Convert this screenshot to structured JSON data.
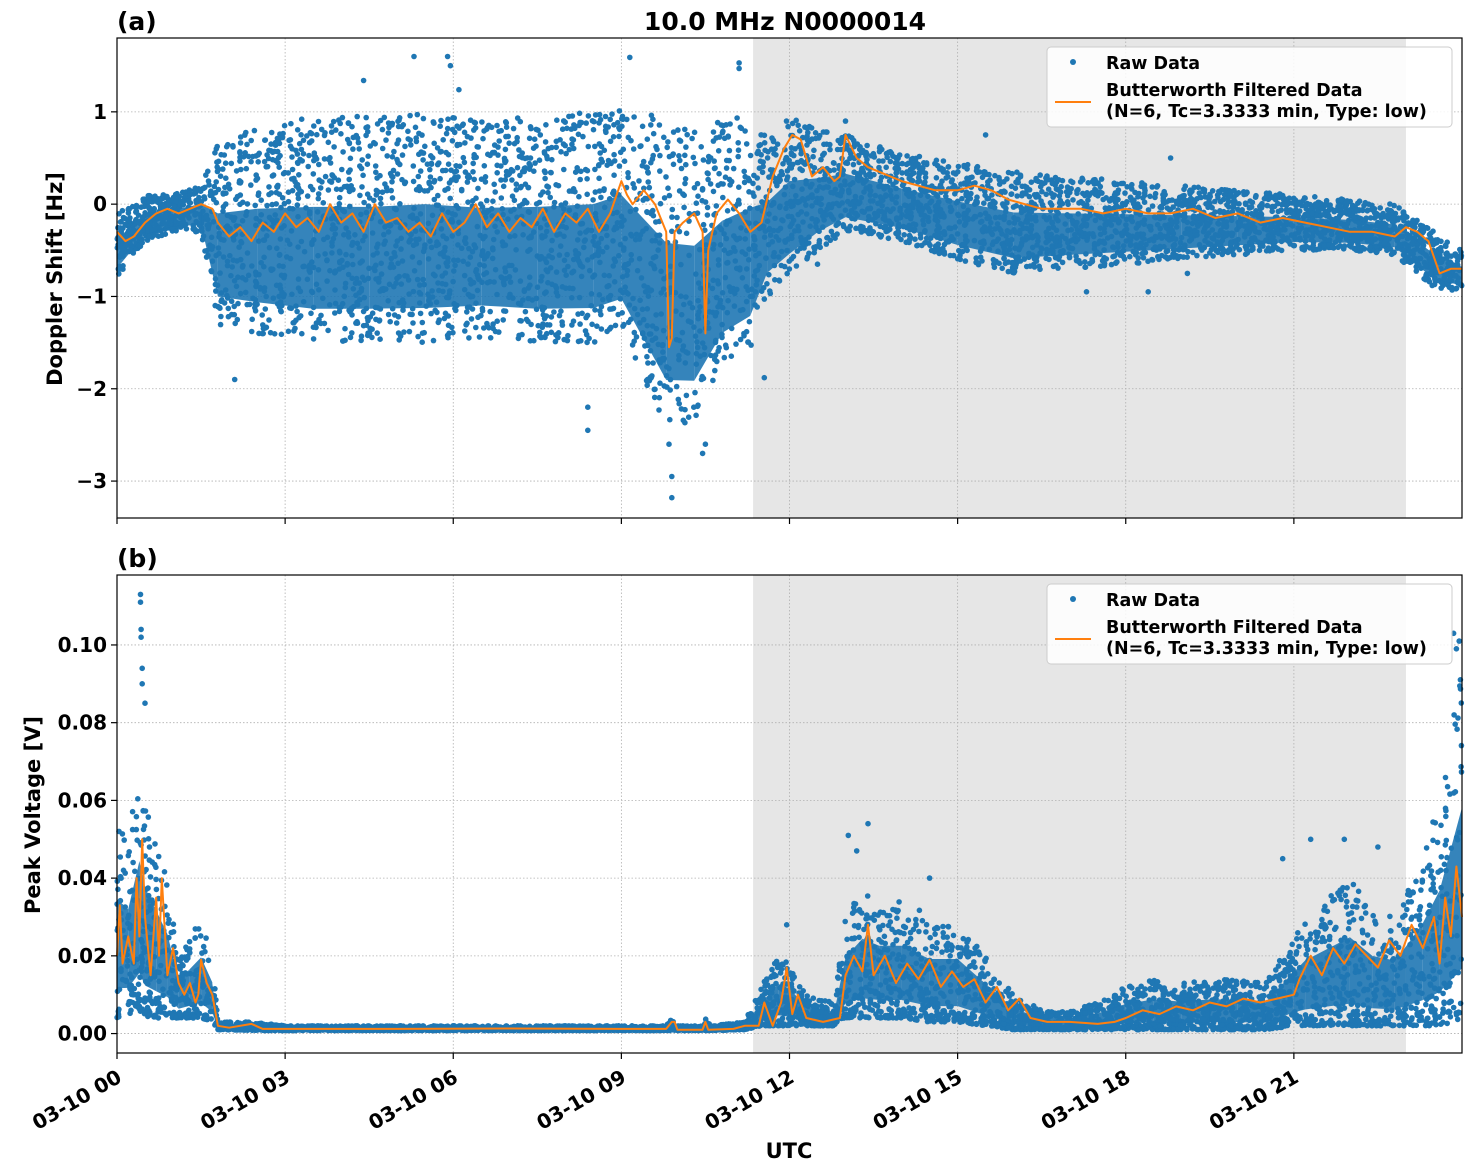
{
  "figure": {
    "title": "10.0 MHz N0000014",
    "xlabel": "UTC"
  },
  "chart_data": [
    {
      "panel": "(a)",
      "type": "scatter",
      "title": "10.0 MHz N0000014",
      "ylabel": "Doppler Shift [Hz]",
      "xlabel": "UTC",
      "x_unit": "hours since 03-10 00:00 UTC",
      "xlim": [
        0,
        24
      ],
      "ylim": [
        -3.4,
        1.8
      ],
      "yticks": [
        1,
        0,
        -1,
        -2,
        -3
      ],
      "ytick_labels": [
        "1",
        "0",
        "−1",
        "−2",
        "−3"
      ],
      "xticks": [
        0,
        3,
        6,
        9,
        12,
        15,
        18,
        21
      ],
      "xtick_labels": [
        "03-10 00",
        "03-10 03",
        "03-10 06",
        "03-10 09",
        "03-10 12",
        "03-10 15",
        "03-10 18",
        "03-10 21"
      ],
      "grid": true,
      "legend_position": "top-right",
      "shaded_interval": [
        11.35,
        23.0
      ],
      "series": [
        {
          "name": "Raw Data",
          "style": "points",
          "color": "#1f77b4",
          "envelope": {
            "x": [
              0,
              0.5,
              1.0,
              1.5,
              1.8,
              2.5,
              3.5,
              4.5,
              5.5,
              6.5,
              7.5,
              8.5,
              9.0,
              9.8,
              10.3,
              10.8,
              11.3,
              11.6,
              12.0,
              12.5,
              13.0,
              14.0,
              15.0,
              16.0,
              17.0,
              18.0,
              19.0,
              20.0,
              21.0,
              22.0,
              22.8,
              23.5,
              24.0
            ],
            "upper": [
              -0.1,
              0.1,
              0.1,
              0.2,
              0.7,
              0.85,
              0.95,
              0.95,
              1.0,
              0.9,
              0.95,
              1.0,
              1.1,
              0.9,
              0.85,
              0.9,
              1.0,
              0.7,
              0.95,
              0.8,
              0.75,
              0.55,
              0.45,
              0.35,
              0.3,
              0.25,
              0.2,
              0.15,
              0.1,
              0.05,
              0.0,
              -0.3,
              -0.5
            ],
            "lower": [
              -0.8,
              -0.4,
              -0.3,
              -0.3,
              -1.3,
              -1.4,
              -1.5,
              -1.5,
              -1.5,
              -1.45,
              -1.5,
              -1.5,
              -1.4,
              -2.4,
              -2.4,
              -1.8,
              -1.6,
              -1.0,
              -0.8,
              -0.5,
              -0.3,
              -0.4,
              -0.6,
              -0.75,
              -0.7,
              -0.65,
              -0.6,
              -0.55,
              -0.5,
              -0.5,
              -0.55,
              -0.9,
              -0.95
            ]
          },
          "outliers": [
            [
              2.1,
              -1.9
            ],
            [
              4.4,
              1.34
            ],
            [
              5.3,
              1.6
            ],
            [
              5.9,
              1.6
            ],
            [
              5.95,
              1.5
            ],
            [
              6.1,
              1.24
            ],
            [
              8.4,
              -2.2
            ],
            [
              8.4,
              -2.45
            ],
            [
              9.15,
              1.59
            ],
            [
              9.85,
              -2.6
            ],
            [
              9.9,
              -3.18
            ],
            [
              9.9,
              -2.95
            ],
            [
              10.45,
              -2.7
            ],
            [
              10.5,
              -2.6
            ],
            [
              11.1,
              1.53
            ],
            [
              11.1,
              1.47
            ],
            [
              11.55,
              -1.88
            ],
            [
              12.5,
              -0.65
            ],
            [
              13.0,
              0.9
            ],
            [
              15.5,
              0.75
            ],
            [
              17.3,
              -0.95
            ],
            [
              18.4,
              -0.95
            ],
            [
              18.8,
              0.5
            ],
            [
              19.1,
              -0.75
            ]
          ]
        },
        {
          "name": "Butterworth Filtered Data\n(N=6, Tc=3.3333 min, Type: low)",
          "style": "line",
          "color": "#ff7f0e",
          "x": [
            0,
            0.15,
            0.3,
            0.5,
            0.7,
            0.9,
            1.1,
            1.3,
            1.5,
            1.7,
            1.8,
            2.0,
            2.2,
            2.4,
            2.6,
            2.8,
            3.0,
            3.2,
            3.4,
            3.6,
            3.8,
            4.0,
            4.2,
            4.4,
            4.6,
            4.8,
            5.0,
            5.2,
            5.4,
            5.6,
            5.8,
            6.0,
            6.2,
            6.4,
            6.6,
            6.8,
            7.0,
            7.2,
            7.4,
            7.6,
            7.8,
            8.0,
            8.2,
            8.4,
            8.6,
            8.8,
            9.0,
            9.1,
            9.2,
            9.4,
            9.6,
            9.8,
            9.85,
            9.9,
            9.95,
            10.1,
            10.3,
            10.45,
            10.5,
            10.55,
            10.7,
            10.9,
            11.1,
            11.3,
            11.5,
            11.7,
            11.9,
            12.05,
            12.2,
            12.4,
            12.6,
            12.8,
            12.9,
            13.0,
            13.2,
            13.4,
            13.6,
            13.8,
            14.0,
            14.3,
            14.6,
            15.0,
            15.3,
            15.6,
            15.9,
            16.2,
            16.5,
            16.8,
            17.2,
            17.6,
            18.0,
            18.4,
            18.8,
            19.2,
            19.6,
            20.0,
            20.4,
            20.8,
            21.2,
            21.6,
            22.0,
            22.4,
            22.8,
            23.0,
            23.2,
            23.4,
            23.6,
            23.8,
            24.0
          ],
          "y": [
            -0.3,
            -0.4,
            -0.35,
            -0.2,
            -0.1,
            -0.05,
            -0.1,
            -0.05,
            0.0,
            -0.05,
            -0.2,
            -0.35,
            -0.25,
            -0.4,
            -0.2,
            -0.3,
            -0.1,
            -0.25,
            -0.15,
            -0.3,
            0.0,
            -0.2,
            -0.1,
            -0.3,
            0.0,
            -0.2,
            -0.15,
            -0.3,
            -0.2,
            -0.35,
            -0.1,
            -0.3,
            -0.2,
            0.0,
            -0.25,
            -0.1,
            -0.3,
            -0.15,
            -0.25,
            -0.05,
            -0.3,
            -0.1,
            -0.2,
            -0.05,
            -0.3,
            -0.1,
            0.25,
            0.1,
            0.0,
            0.15,
            0.0,
            -0.3,
            -1.55,
            -1.45,
            -0.3,
            -0.2,
            -0.1,
            -0.3,
            -1.4,
            -0.5,
            -0.1,
            0.05,
            -0.1,
            -0.3,
            -0.2,
            0.3,
            0.6,
            0.75,
            0.7,
            0.3,
            0.4,
            0.25,
            0.3,
            0.75,
            0.5,
            0.4,
            0.35,
            0.3,
            0.25,
            0.2,
            0.15,
            0.15,
            0.2,
            0.15,
            0.05,
            0.0,
            -0.05,
            -0.05,
            -0.05,
            -0.1,
            -0.05,
            -0.1,
            -0.1,
            -0.05,
            -0.15,
            -0.1,
            -0.2,
            -0.15,
            -0.2,
            -0.25,
            -0.3,
            -0.3,
            -0.35,
            -0.25,
            -0.3,
            -0.4,
            -0.75,
            -0.7,
            -0.7
          ]
        }
      ]
    },
    {
      "panel": "(b)",
      "type": "scatter",
      "ylabel": "Peak Voltage [V]",
      "xlabel": "UTC",
      "x_unit": "hours since 03-10 00:00 UTC",
      "xlim": [
        0,
        24
      ],
      "ylim": [
        -0.005,
        0.118
      ],
      "yticks": [
        0.0,
        0.02,
        0.04,
        0.06,
        0.08,
        0.1
      ],
      "ytick_labels": [
        "0.00",
        "0.02",
        "0.04",
        "0.06",
        "0.08",
        "0.10"
      ],
      "xticks": [
        0,
        3,
        6,
        9,
        12,
        15,
        18,
        21
      ],
      "xtick_labels": [
        "03-10 00",
        "03-10 03",
        "03-10 06",
        "03-10 09",
        "03-10 12",
        "03-10 15",
        "03-10 18",
        "03-10 21"
      ],
      "grid": true,
      "legend_position": "top-right",
      "shaded_interval": [
        11.35,
        23.0
      ],
      "series": [
        {
          "name": "Raw Data",
          "style": "points",
          "color": "#1f77b4",
          "envelope": {
            "x": [
              0,
              0.2,
              0.4,
              0.5,
              0.7,
              0.9,
              1.1,
              1.3,
              1.5,
              1.7,
              1.8,
              2.5,
              3.0,
              5.0,
              7.0,
              9.0,
              9.8,
              9.9,
              10.0,
              10.45,
              10.5,
              10.6,
              11.2,
              11.5,
              11.8,
              12.0,
              12.3,
              12.8,
              13.0,
              13.3,
              13.6,
              14.0,
              14.5,
              15.0,
              15.5,
              16.0,
              16.5,
              17.0,
              17.5,
              18.0,
              18.5,
              19.0,
              19.5,
              20.0,
              20.5,
              21.0,
              21.2,
              21.6,
              22.0,
              22.4,
              22.8,
              23.0,
              23.3,
              23.6,
              24.0
            ],
            "upper": [
              0.055,
              0.05,
              0.07,
              0.06,
              0.05,
              0.04,
              0.02,
              0.025,
              0.03,
              0.02,
              0.003,
              0.003,
              0.002,
              0.002,
              0.002,
              0.002,
              0.002,
              0.004,
              0.002,
              0.002,
              0.004,
              0.002,
              0.003,
              0.012,
              0.02,
              0.018,
              0.01,
              0.008,
              0.03,
              0.038,
              0.035,
              0.035,
              0.03,
              0.03,
              0.02,
              0.01,
              0.006,
              0.006,
              0.008,
              0.012,
              0.014,
              0.013,
              0.014,
              0.014,
              0.013,
              0.025,
              0.03,
              0.035,
              0.04,
              0.032,
              0.03,
              0.036,
              0.046,
              0.06,
              0.095
            ],
            "lower": [
              0.004,
              0.005,
              0.006,
              0.004,
              0.004,
              0.004,
              0.004,
              0.004,
              0.004,
              0.003,
              0.001,
              0.0008,
              0.0008,
              0.0008,
              0.0008,
              0.0008,
              0.0008,
              0.0008,
              0.0008,
              0.0008,
              0.0008,
              0.0008,
              0.001,
              0.002,
              0.002,
              0.002,
              0.002,
              0.002,
              0.004,
              0.004,
              0.004,
              0.004,
              0.003,
              0.003,
              0.002,
              0.001,
              0.001,
              0.001,
              0.001,
              0.001,
              0.001,
              0.001,
              0.001,
              0.001,
              0.001,
              0.002,
              0.002,
              0.002,
              0.002,
              0.002,
              0.002,
              0.002,
              0.002,
              0.002,
              0.003
            ]
          },
          "outliers": [
            [
              0.42,
              0.113
            ],
            [
              0.42,
              0.111
            ],
            [
              0.43,
              0.104
            ],
            [
              0.43,
              0.102
            ],
            [
              0.45,
              0.094
            ],
            [
              0.45,
              0.09
            ],
            [
              0.5,
              0.085
            ],
            [
              11.95,
              0.028
            ],
            [
              13.05,
              0.051
            ],
            [
              13.2,
              0.047
            ],
            [
              13.4,
              0.054
            ],
            [
              14.5,
              0.04
            ],
            [
              20.8,
              0.045
            ],
            [
              21.3,
              0.05
            ],
            [
              21.9,
              0.05
            ],
            [
              22.5,
              0.048
            ],
            [
              23.85,
              0.103
            ],
            [
              23.9,
              0.099
            ],
            [
              23.95,
              0.101
            ]
          ]
        },
        {
          "name": "Butterworth Filtered Data\n(N=6, Tc=3.3333 min, Type: low)",
          "style": "line",
          "color": "#ff7f0e",
          "x": [
            0,
            0.05,
            0.1,
            0.2,
            0.3,
            0.35,
            0.4,
            0.45,
            0.5,
            0.6,
            0.7,
            0.75,
            0.8,
            0.9,
            1.0,
            1.1,
            1.2,
            1.3,
            1.4,
            1.45,
            1.5,
            1.6,
            1.7,
            1.8,
            2.0,
            2.4,
            2.6,
            3.0,
            5.0,
            7.0,
            9.0,
            9.8,
            9.9,
            9.95,
            10.0,
            10.45,
            10.5,
            10.55,
            11.0,
            11.2,
            11.45,
            11.55,
            11.7,
            11.85,
            11.95,
            12.05,
            12.15,
            12.3,
            12.6,
            12.9,
            13.0,
            13.15,
            13.3,
            13.4,
            13.5,
            13.7,
            13.9,
            14.1,
            14.3,
            14.5,
            14.7,
            14.9,
            15.1,
            15.3,
            15.5,
            15.7,
            15.9,
            16.1,
            16.3,
            16.6,
            17.0,
            17.5,
            17.8,
            18.0,
            18.3,
            18.6,
            18.9,
            19.2,
            19.5,
            19.8,
            20.1,
            20.4,
            20.7,
            21.0,
            21.1,
            21.3,
            21.5,
            21.7,
            21.9,
            22.1,
            22.3,
            22.5,
            22.7,
            22.9,
            23.1,
            23.3,
            23.5,
            23.6,
            23.7,
            23.8,
            23.9,
            24.0
          ],
          "y": [
            0.02,
            0.033,
            0.018,
            0.025,
            0.018,
            0.04,
            0.025,
            0.05,
            0.03,
            0.015,
            0.035,
            0.02,
            0.04,
            0.015,
            0.022,
            0.013,
            0.01,
            0.013,
            0.008,
            0.01,
            0.019,
            0.013,
            0.01,
            0.002,
            0.0015,
            0.0025,
            0.0012,
            0.0012,
            0.0012,
            0.0013,
            0.0012,
            0.0012,
            0.003,
            0.003,
            0.001,
            0.001,
            0.003,
            0.001,
            0.0012,
            0.002,
            0.002,
            0.008,
            0.002,
            0.008,
            0.017,
            0.005,
            0.01,
            0.004,
            0.003,
            0.004,
            0.015,
            0.02,
            0.016,
            0.028,
            0.015,
            0.02,
            0.013,
            0.018,
            0.014,
            0.019,
            0.012,
            0.016,
            0.012,
            0.014,
            0.008,
            0.012,
            0.006,
            0.009,
            0.004,
            0.003,
            0.003,
            0.0025,
            0.003,
            0.004,
            0.006,
            0.005,
            0.007,
            0.006,
            0.008,
            0.007,
            0.009,
            0.008,
            0.009,
            0.01,
            0.014,
            0.02,
            0.015,
            0.022,
            0.018,
            0.023,
            0.02,
            0.017,
            0.024,
            0.02,
            0.028,
            0.022,
            0.03,
            0.018,
            0.035,
            0.025,
            0.043,
            0.03
          ]
        }
      ]
    }
  ]
}
